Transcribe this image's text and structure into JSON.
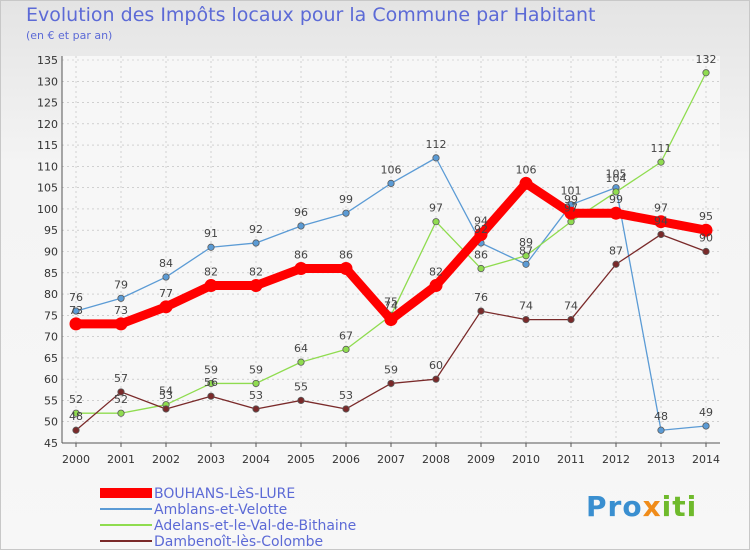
{
  "chart_data": {
    "type": "line",
    "title": "Evolution des Impôts locaux pour la Commune par Habitant",
    "subtitle": "(en € et par an)",
    "x": [
      2000,
      2001,
      2002,
      2003,
      2004,
      2005,
      2006,
      2007,
      2008,
      2009,
      2010,
      2011,
      2012,
      2013,
      2014
    ],
    "ylim": [
      45,
      135
    ],
    "yticks": [
      45,
      50,
      55,
      60,
      65,
      70,
      75,
      80,
      85,
      90,
      95,
      100,
      105,
      110,
      115,
      120,
      125,
      130,
      135
    ],
    "grid": true,
    "legend_position": "bottom-left",
    "series": [
      {
        "name": "BOUHANS-LèS-LURE",
        "color": "#ff0000",
        "bold": true,
        "values": [
          73,
          73,
          77,
          82,
          82,
          86,
          86,
          74,
          82,
          94,
          106,
          99,
          99,
          97,
          95
        ]
      },
      {
        "name": "Amblans-et-Velotte",
        "color": "#5b9bd5",
        "values": [
          76,
          79,
          84,
          91,
          92,
          96,
          99,
          106,
          112,
          92,
          87,
          101,
          105,
          48,
          49
        ]
      },
      {
        "name": "Adelans-et-le-Val-de-Bithaine",
        "color": "#8fdc4f",
        "values": [
          52,
          52,
          54,
          59,
          59,
          64,
          67,
          75,
          97,
          86,
          89,
          97,
          104,
          111,
          132
        ]
      },
      {
        "name": "Dambenoît-lès-Colombe",
        "color": "#7a2a2a",
        "values": [
          48,
          57,
          53,
          56,
          53,
          55,
          53,
          59,
          60,
          76,
          74,
          74,
          87,
          94,
          90
        ]
      }
    ],
    "point_labels": [
      [
        73,
        73,
        77,
        82,
        82,
        86,
        86,
        74,
        82,
        94,
        106,
        99,
        99,
        97,
        95
      ],
      [
        76,
        79,
        84,
        91,
        92,
        96,
        99,
        106,
        112,
        92,
        87,
        101,
        105,
        48,
        49
      ],
      [
        52,
        52,
        54,
        59,
        59,
        64,
        67,
        75,
        97,
        86,
        89,
        97,
        104,
        111,
        132
      ],
      [
        48,
        57,
        53,
        56,
        53,
        55,
        53,
        59,
        60,
        76,
        74,
        74,
        87,
        94,
        90
      ]
    ]
  },
  "brand": {
    "p1": "Pro",
    "p2": "x",
    "p3": "iti"
  }
}
